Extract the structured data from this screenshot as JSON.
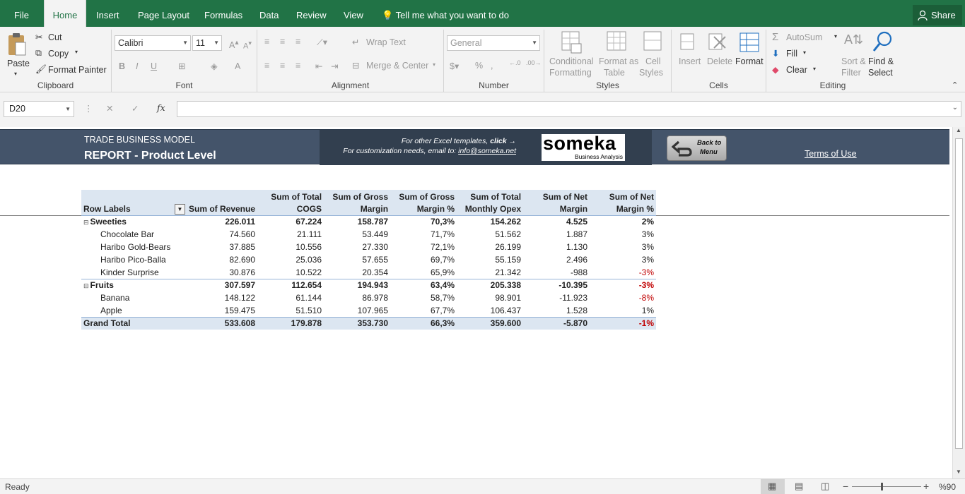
{
  "tabs": [
    "File",
    "Home",
    "Insert",
    "Page Layout",
    "Formulas",
    "Data",
    "Review",
    "View"
  ],
  "tell_me": "Tell me what you want to do",
  "share": "Share",
  "clipboard": {
    "paste": "Paste",
    "cut": "Cut",
    "copy": "Copy",
    "format_painter": "Format Painter",
    "label": "Clipboard"
  },
  "font": {
    "name": "Calibri",
    "size": "11",
    "label": "Font"
  },
  "alignment": {
    "wrap": "Wrap Text",
    "merge": "Merge & Center",
    "label": "Alignment"
  },
  "number": {
    "format": "General",
    "label": "Number"
  },
  "styles": {
    "cond1": "Conditional",
    "cond2": "Formatting",
    "fmt1": "Format as",
    "fmt2": "Table",
    "cell1": "Cell",
    "cell2": "Styles",
    "label": "Styles"
  },
  "cells": {
    "insert": "Insert",
    "delete": "Delete",
    "format": "Format",
    "label": "Cells"
  },
  "editing": {
    "autosum": "AutoSum",
    "fill": "Fill",
    "clear": "Clear",
    "sort1": "Sort &",
    "sort2": "Filter",
    "find1": "Find &",
    "find2": "Select",
    "label": "Editing"
  },
  "namebox": "D20",
  "fx": "fx",
  "banner": {
    "subtitle": "TRADE BUSINESS MODEL",
    "title": "REPORT - Product Level",
    "line1": "For other Excel templates,",
    "click": "click",
    "line2": "For customization needs, email to:",
    "email": "info@someka.net",
    "logo": "someka",
    "logo_sub": "Business Analysis",
    "back1": "Back to",
    "back2": "Menu",
    "terms": "Terms of Use"
  },
  "table": {
    "headers": [
      [
        "",
        "Row Labels"
      ],
      [
        "",
        "Sum of Revenue"
      ],
      [
        "Sum of Total",
        "COGS"
      ],
      [
        "Sum of Gross",
        "Margin"
      ],
      [
        "Sum of Gross",
        "Margin %"
      ],
      [
        "Sum of Total",
        "Monthly Opex"
      ],
      [
        "Sum of Net",
        "Margin"
      ],
      [
        "Sum of Net",
        "Margin %"
      ]
    ],
    "rows": [
      {
        "type": "group",
        "cells": [
          "Sweeties",
          "226.011",
          "67.224",
          "158.787",
          "70,3%",
          "154.262",
          "4.525",
          "2%"
        ]
      },
      {
        "type": "item",
        "cells": [
          "Chocolate Bar",
          "74.560",
          "21.111",
          "53.449",
          "71,7%",
          "51.562",
          "1.887",
          "3%"
        ]
      },
      {
        "type": "item",
        "cells": [
          "Haribo Gold-Bears",
          "37.885",
          "10.556",
          "27.330",
          "72,1%",
          "26.199",
          "1.130",
          "3%"
        ]
      },
      {
        "type": "item",
        "cells": [
          "Haribo Pico-Balla",
          "82.690",
          "25.036",
          "57.655",
          "69,7%",
          "55.159",
          "2.496",
          "3%"
        ]
      },
      {
        "type": "item",
        "cells": [
          "Kinder Surprise",
          "30.876",
          "10.522",
          "20.354",
          "65,9%",
          "21.342",
          "-988",
          "-3%"
        ]
      },
      {
        "type": "group",
        "cells": [
          "Fruits",
          "307.597",
          "112.654",
          "194.943",
          "63,4%",
          "205.338",
          "-10.395",
          "-3%"
        ]
      },
      {
        "type": "item",
        "cells": [
          "Banana",
          "148.122",
          "61.144",
          "86.978",
          "58,7%",
          "98.901",
          "-11.923",
          "-8%"
        ]
      },
      {
        "type": "item",
        "cells": [
          "Apple",
          "159.475",
          "51.510",
          "107.965",
          "67,7%",
          "106.437",
          "1.528",
          "1%"
        ]
      },
      {
        "type": "total",
        "cells": [
          "Grand Total",
          "533.608",
          "179.878",
          "353.730",
          "66,3%",
          "359.600",
          "-5.870",
          "-1%"
        ]
      }
    ]
  },
  "status": {
    "ready": "Ready",
    "zoom": "%90"
  }
}
